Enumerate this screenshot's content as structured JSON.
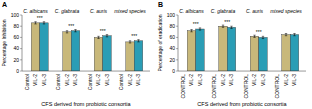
{
  "chart_data": [
    {
      "type": "bar",
      "title": "A",
      "x_label": "CFS derived from probiotic consortia",
      "y_label": "Percentage Inhibition",
      "categories": [
        "C. albicans",
        "C. glabrata",
        "C. auris",
        "mixed species"
      ],
      "series": [
        {
          "name": "Control",
          "color": "#FFFFFF",
          "values": [
            0,
            0,
            0,
            0
          ]
        },
        {
          "name": "VIL-2",
          "color": "#C8B87A",
          "values": [
            86,
            70,
            60,
            52
          ],
          "errors": [
            2,
            2,
            2,
            2
          ]
        },
        {
          "name": "VIL-3",
          "color": "#2A9DB5",
          "values": [
            86,
            72,
            63,
            54
          ],
          "errors": [
            2,
            2,
            2,
            2
          ]
        }
      ],
      "annotations": [
        "***",
        "***",
        "***",
        "***"
      ],
      "ylim": [
        0,
        100
      ],
      "yticks": [
        0,
        20,
        40,
        60,
        80,
        100
      ],
      "grid": false
    },
    {
      "type": "bar",
      "title": "B",
      "x_label": "CFS derived from probiotic consortia",
      "y_label": "Percentage of eradication",
      "categories": [
        "C. albicans",
        "C. glabrata",
        "C. auris",
        "mixed species"
      ],
      "series": [
        {
          "name": "CONTROL",
          "color": "#FFFFFF",
          "values": [
            0,
            0,
            0,
            0
          ]
        },
        {
          "name": "VIL-2",
          "color": "#C8B87A",
          "values": [
            72,
            80,
            62,
            65
          ],
          "errors": [
            2,
            2,
            2,
            2
          ]
        },
        {
          "name": "VIL-3",
          "color": "#2A9DB5",
          "values": [
            75,
            78,
            60,
            65
          ],
          "errors": [
            2,
            2,
            2,
            2
          ]
        }
      ],
      "annotations": [
        "***",
        "***",
        "***",
        null
      ],
      "ylim": [
        0,
        100
      ],
      "yticks": [
        0,
        20,
        40,
        60,
        80,
        100
      ],
      "grid": false
    }
  ]
}
